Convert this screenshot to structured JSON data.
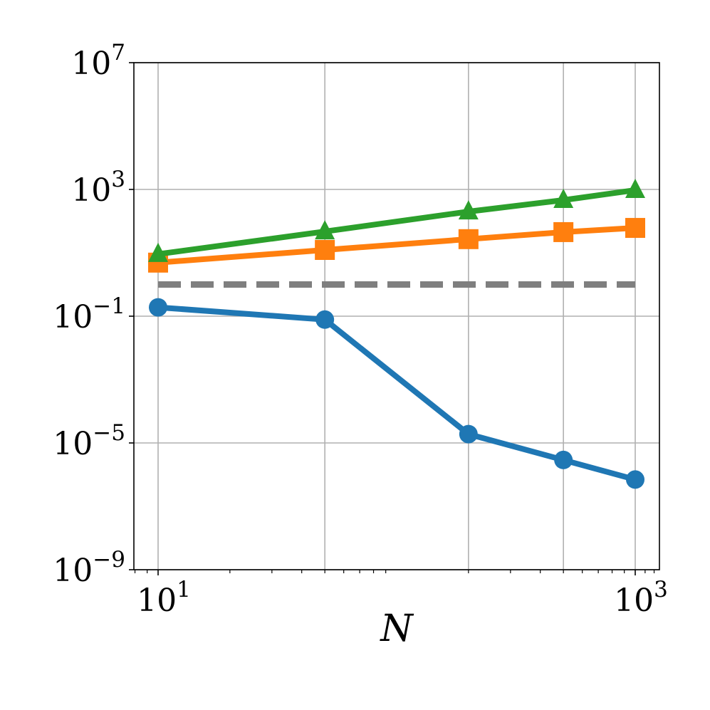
{
  "chart_data": {
    "type": "line",
    "title": "",
    "xlabel": "N",
    "ylabel": "",
    "xscale": "log",
    "yscale": "log",
    "xlim": [
      8,
      1300
    ],
    "ylim": [
      1e-09,
      10000000.0
    ],
    "grid": true,
    "legend": null,
    "x": [
      10,
      50,
      200,
      500,
      1000
    ],
    "x_ticks": [
      {
        "base": "10",
        "exp": "1",
        "value": 10
      },
      {
        "base": "10",
        "exp": "3",
        "value": 1000
      }
    ],
    "y_ticks": [
      {
        "base": "10",
        "exp": "7",
        "value": 10000000.0
      },
      {
        "base": "10",
        "exp": "3",
        "value": 1000.0
      },
      {
        "base": "10",
        "exp": "−1",
        "value": 0.1
      },
      {
        "base": "10",
        "exp": "−5",
        "value": 1e-05
      },
      {
        "base": "10",
        "exp": "−9",
        "value": 1e-09
      }
    ],
    "series": [
      {
        "name": "series-blue-circle",
        "color": "#1f77b4",
        "marker": "circle",
        "values": [
          0.19,
          0.078,
          1.9e-05,
          2.9e-06,
          7e-07
        ]
      },
      {
        "name": "series-orange-square",
        "color": "#ff7f0e",
        "marker": "square",
        "values": [
          4.9,
          12.3,
          27,
          45,
          61
        ]
      },
      {
        "name": "series-green-triangle",
        "color": "#2ca02c",
        "marker": "triangle",
        "values": [
          9.1,
          47,
          200,
          460,
          950
        ]
      }
    ],
    "reference_line": {
      "name": "reference-dashed",
      "color": "#7f7f7f",
      "style": "dashed",
      "value": 1.0,
      "x_range": [
        10,
        1000
      ]
    }
  }
}
